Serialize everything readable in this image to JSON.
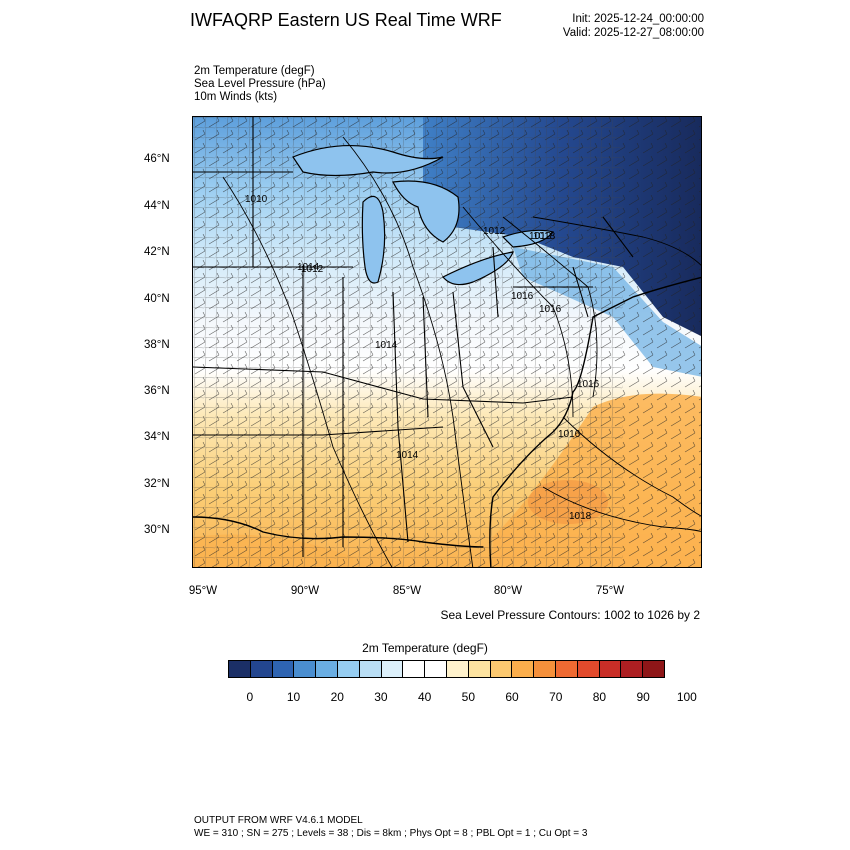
{
  "header": {
    "title": "IWFAQRP Eastern US Real Time WRF",
    "init": "Init: 2025-12-24_00:00:00",
    "valid": "Valid: 2025-12-27_08:00:00"
  },
  "fields": [
    "2m Temperature   (degF)",
    "Sea Level Pressure   (hPa)",
    "10m Winds   (kts)"
  ],
  "map": {
    "lat_labels": [
      "46°N",
      "44°N",
      "42°N",
      "40°N",
      "38°N",
      "36°N",
      "34°N",
      "32°N",
      "30°N"
    ],
    "lon_labels": [
      "95°W",
      "90°W",
      "85°W",
      "80°W",
      "75°W"
    ],
    "pressure_labels": [
      "1010",
      "1012",
      "1012",
      "1012",
      "1014",
      "1014",
      "1014",
      "1016",
      "1016",
      "1016",
      "1016",
      "1018",
      "1018"
    ],
    "contour_note": "Sea Level Pressure Contours: 1002 to 1026 by 2"
  },
  "colorbar": {
    "title": "2m Temperature  (degF)",
    "labels": [
      "0",
      "10",
      "20",
      "30",
      "40",
      "50",
      "60",
      "70",
      "80",
      "90",
      "100"
    ],
    "colors": [
      "#1b2f66",
      "#23468f",
      "#2e64b2",
      "#4a8ed0",
      "#6aaee3",
      "#96cdf1",
      "#b9def5",
      "#dcf0fb",
      "#ffffff",
      "#ffffff",
      "#fff2cc",
      "#fde3a0",
      "#fcc970",
      "#fbae4c",
      "#f5903b",
      "#ef6a32",
      "#e24a2c",
      "#c92e27",
      "#ad1f22",
      "#8e1618"
    ]
  },
  "footer": {
    "line1": "OUTPUT FROM WRF V4.6.1 MODEL",
    "line2": "WE = 310 ; SN = 275 ; Levels = 38 ; Dis = 8km ; Phys Opt = 8 ; PBL Opt = 1 ; Cu Opt = 3"
  }
}
